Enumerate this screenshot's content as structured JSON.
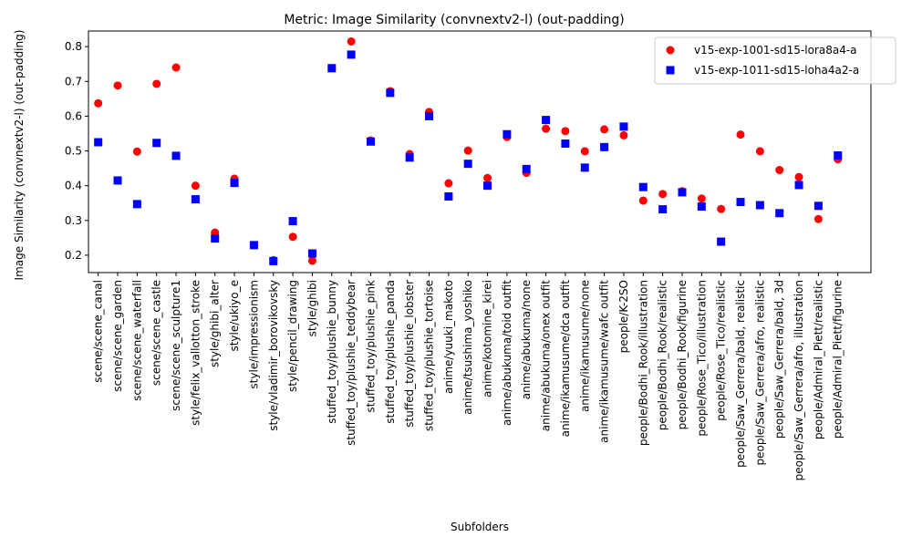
{
  "chart_data": {
    "type": "scatter",
    "title": "Metric: Image Similarity (convnextv2-l) (out-padding)",
    "xlabel": "Subfolders",
    "ylabel": "Image Similarity (convnextv2-l) (out-padding)",
    "ylim": [
      0.15,
      0.845
    ],
    "yticks": [
      0.2,
      0.3,
      0.4,
      0.5,
      0.6,
      0.7,
      0.8
    ],
    "ytick_labels": [
      "0.2",
      "0.3",
      "0.4",
      "0.5",
      "0.6",
      "0.7",
      "0.8"
    ],
    "grid": false,
    "legend_position": "top-right",
    "categories": [
      "scene/scene_canal",
      "scene/scene_garden",
      "scene/scene_waterfall",
      "scene/scene_castle",
      "scene/scene_sculpture1",
      "style/felix_vallotton_stroke",
      "style/ghibi_alter",
      "style/ukiyo_e",
      "style/impressionism",
      "style/vladimir_borovikovsky",
      "style/pencil_drawing",
      "style/ghibi",
      "stuffed_toy/plushie_bunny",
      "stuffed_toy/plushie_teddybear",
      "stuffed_toy/plushie_pink",
      "stuffed_toy/plushie_panda",
      "stuffed_toy/plushie_lobster",
      "stuffed_toy/plushie_tortoise",
      "anime/yuuki_makoto",
      "anime/tsushima_yoshiko",
      "anime/kotomine_kirei",
      "anime/abukuma/toid outfit",
      "anime/abukuma/none",
      "anime/abukuma/onex outfit",
      "anime/ikamusume/dca outfit",
      "anime/ikamusume/none",
      "anime/ikamusume/wafc outfit",
      "people/K-2SO",
      "people/Bodhi_Rook/illustration",
      "people/Bodhi_Rook/realistic",
      "people/Bodhi_Rook/figurine",
      "people/Rose_Tico/illustration",
      "people/Rose_Tico/realistic",
      "people/Saw_Gerrera/bald, realistic",
      "people/Saw_Gerrera/afro, realistic",
      "people/Saw_Gerrera/bald, 3d",
      "people/Saw_Gerrera/afro, illustration",
      "people/Admiral_Piett/realistic",
      "people/Admiral_Piett/figurine"
    ],
    "series": [
      {
        "name": "v15-exp-1001-sd15-lora8a4-a",
        "color": "#ff0000",
        "marker": "circle",
        "values": [
          0.637,
          0.688,
          0.498,
          0.693,
          0.74,
          0.4,
          0.265,
          0.42,
          0.229,
          0.186,
          0.253,
          0.184,
          0.738,
          0.815,
          0.53,
          0.672,
          0.491,
          0.612,
          0.407,
          0.501,
          0.422,
          0.54,
          0.437,
          0.564,
          0.557,
          0.499,
          0.562,
          0.545,
          0.357,
          0.376,
          0.384,
          0.363,
          0.333,
          0.547,
          0.499,
          0.445,
          0.425,
          0.304,
          0.476
        ]
      },
      {
        "name": "v15-exp-1011-sd15-loha4a2-a",
        "color": "#0000ff",
        "marker": "square",
        "values": [
          0.525,
          0.415,
          0.347,
          0.523,
          0.486,
          0.361,
          0.248,
          0.408,
          0.229,
          0.183,
          0.298,
          0.205,
          0.738,
          0.777,
          0.527,
          0.667,
          0.481,
          0.6,
          0.369,
          0.463,
          0.4,
          0.548,
          0.448,
          0.589,
          0.521,
          0.452,
          0.511,
          0.57,
          0.396,
          0.332,
          0.381,
          0.34,
          0.239,
          0.353,
          0.344,
          0.321,
          0.402,
          0.342,
          0.487
        ]
      }
    ]
  }
}
